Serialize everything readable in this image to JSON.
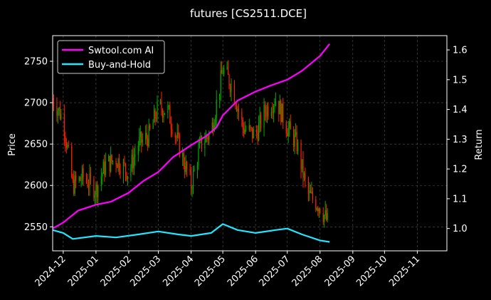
{
  "chart_data": {
    "type": "line",
    "title": "futures [CS2511.DCE]",
    "ylabel": "Price",
    "y2label": "Return",
    "xlim": [
      "2024-11-21",
      "2025-11-29"
    ],
    "ylim": [
      2521,
      2781
    ],
    "y2lim": [
      0.925,
      1.648
    ],
    "x_ticks": [
      "2024-12",
      "2025-01",
      "2025-02",
      "2025-03",
      "2025-04",
      "2025-05",
      "2025-06",
      "2025-07",
      "2025-08",
      "2025-09",
      "2025-10",
      "2025-11"
    ],
    "x_tick_dates": [
      "2024-12-01",
      "2025-01-01",
      "2025-02-01",
      "2025-03-01",
      "2025-04-01",
      "2025-05-01",
      "2025-06-01",
      "2025-07-01",
      "2025-08-01",
      "2025-09-01",
      "2025-10-01",
      "2025-11-01"
    ],
    "y_ticks": [
      2550,
      2600,
      2650,
      2700,
      2750
    ],
    "y2_ticks": [
      1.0,
      1.1,
      1.2,
      1.3,
      1.4,
      1.5,
      1.6
    ],
    "y_tick_labels": [
      "2550",
      "2600",
      "2650",
      "2700",
      "2750"
    ],
    "y2_tick_labels": [
      "1.0",
      "1.1",
      "1.2",
      "1.3",
      "1.4",
      "1.5",
      "1.6"
    ],
    "grid": true,
    "legend_position": "top-left",
    "colors": {
      "background": "#000000",
      "up": "#00aa00",
      "down": "#ff2200",
      "strategy": "#ff00ff",
      "benchmark": "#22e5ff",
      "grid": "#555555"
    },
    "price_series": {
      "name": "",
      "type": "candlestick",
      "x": [
        "2024-11-21",
        "2024-12-01",
        "2024-12-10",
        "2024-12-20",
        "2025-01-01",
        "2025-01-10",
        "2025-01-20",
        "2025-02-01",
        "2025-02-10",
        "2025-02-20",
        "2025-03-01",
        "2025-03-10",
        "2025-03-20",
        "2025-04-01",
        "2025-04-10",
        "2025-04-20",
        "2025-05-01",
        "2025-05-10",
        "2025-05-20",
        "2025-06-01",
        "2025-06-10",
        "2025-06-20",
        "2025-07-01",
        "2025-07-10",
        "2025-07-20",
        "2025-08-01",
        "2025-08-10"
      ],
      "close": [
        2705,
        2680,
        2600,
        2610,
        2595,
        2625,
        2632,
        2615,
        2650,
        2660,
        2695,
        2690,
        2650,
        2600,
        2650,
        2665,
        2740,
        2720,
        2670,
        2660,
        2690,
        2705,
        2670,
        2650,
        2590,
        2575,
        2550
      ]
    },
    "series": [
      {
        "name": "Swtool.com AI",
        "axis": "right",
        "x": [
          "2024-11-21",
          "2024-12-01",
          "2024-12-15",
          "2025-01-01",
          "2025-01-15",
          "2025-02-01",
          "2025-02-15",
          "2025-03-01",
          "2025-03-15",
          "2025-04-01",
          "2025-04-15",
          "2025-04-25",
          "2025-05-01",
          "2025-05-15",
          "2025-06-01",
          "2025-06-15",
          "2025-07-01",
          "2025-07-15",
          "2025-08-01",
          "2025-08-10"
        ],
        "values": [
          1.0,
          1.02,
          1.06,
          1.08,
          1.09,
          1.12,
          1.16,
          1.19,
          1.24,
          1.28,
          1.31,
          1.34,
          1.38,
          1.43,
          1.46,
          1.48,
          1.5,
          1.53,
          1.58,
          1.62
        ]
      },
      {
        "name": "Buy-and-Hold",
        "axis": "right",
        "x": [
          "2024-11-21",
          "2024-12-01",
          "2024-12-10",
          "2025-01-01",
          "2025-01-20",
          "2025-02-10",
          "2025-03-01",
          "2025-03-20",
          "2025-04-01",
          "2025-04-20",
          "2025-05-01",
          "2025-05-15",
          "2025-06-01",
          "2025-06-20",
          "2025-07-01",
          "2025-07-15",
          "2025-08-01",
          "2025-08-10"
        ],
        "values": [
          0.995,
          0.985,
          0.965,
          0.975,
          0.97,
          0.98,
          0.99,
          0.98,
          0.975,
          0.985,
          1.015,
          0.995,
          0.985,
          0.995,
          1.0,
          0.98,
          0.96,
          0.955
        ]
      }
    ]
  }
}
